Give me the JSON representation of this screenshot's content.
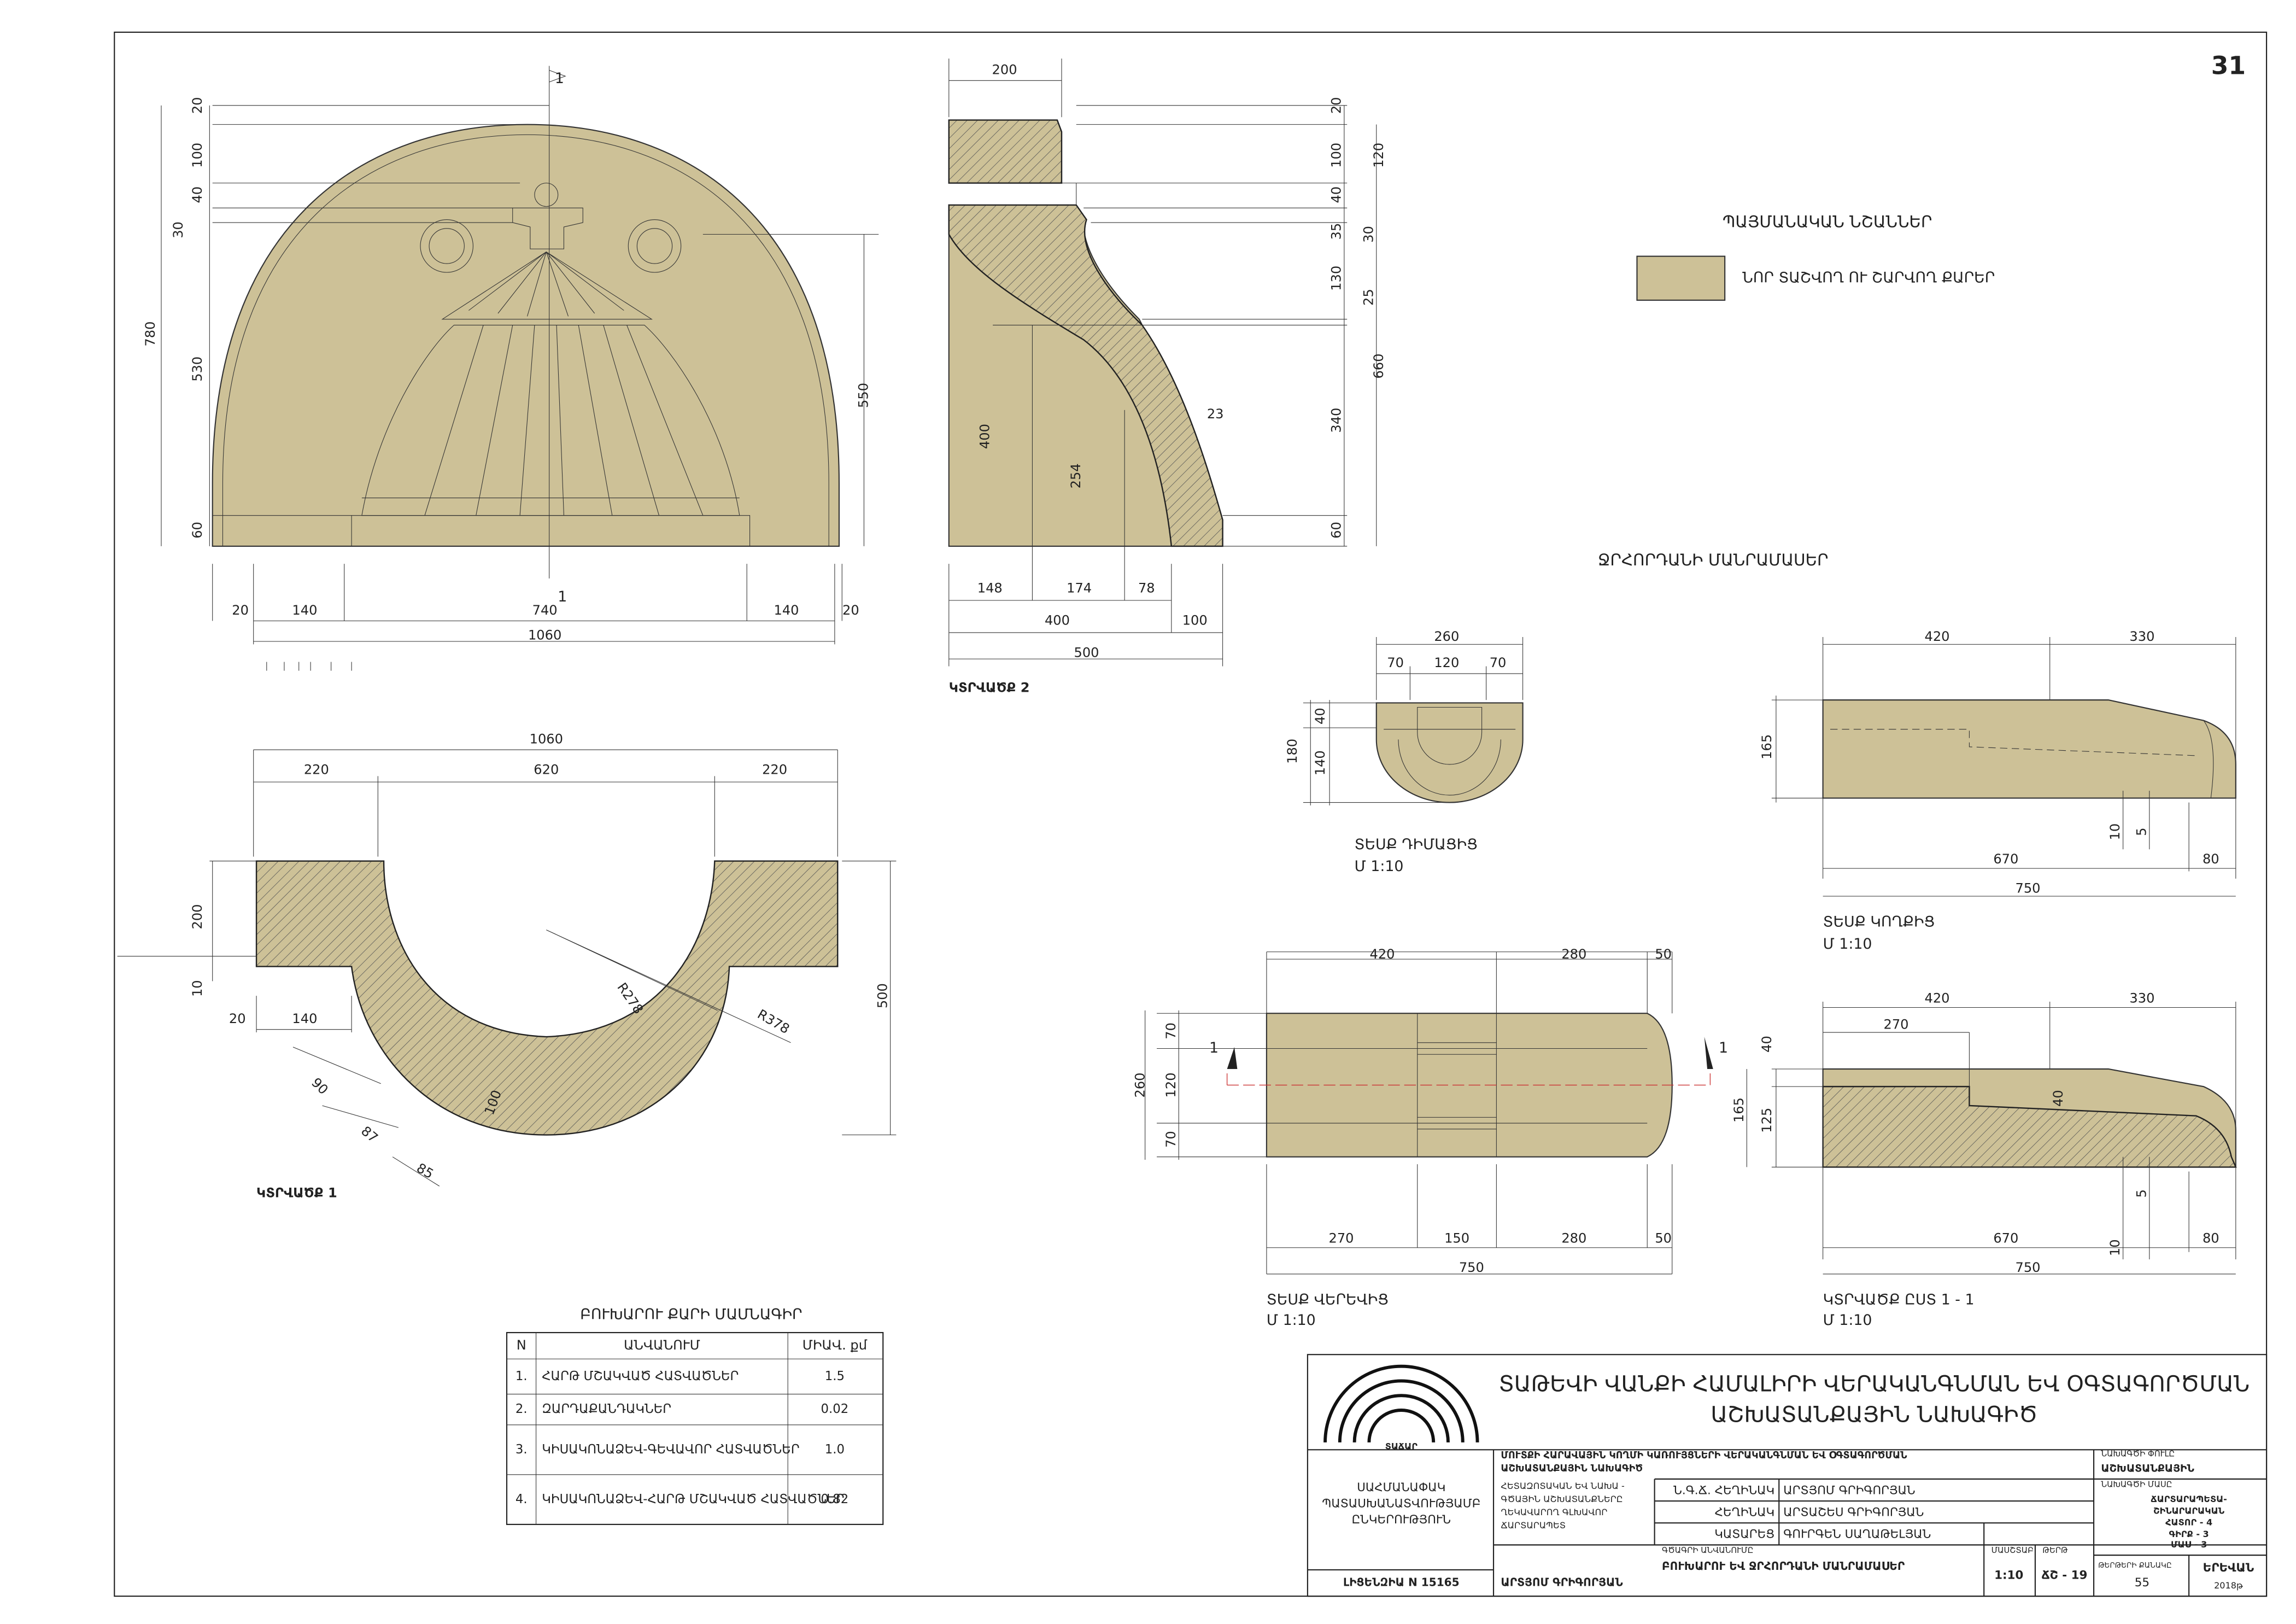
{
  "sheet_number": "31",
  "legend": {
    "title": "ՊԱՅՄԱՆԱԿԱՆ ՆՇԱՆՆԵՐ",
    "items": [
      "ՆՈՐ ՏԱՇՎՈՂ ՈՒ ՇԱՐՎՈՂ ՔԱՐԵՐ"
    ]
  },
  "elevation": {
    "section_marks": [
      "1",
      "1"
    ],
    "dims": [
      "20",
      "100",
      "40",
      "30",
      "530",
      "60",
      "780",
      "550",
      "20",
      "140",
      "740",
      "140",
      "20",
      "1060"
    ]
  },
  "section2": {
    "label": "ԿՏՐՎԱԾՔ 2",
    "dims": [
      "200",
      "20",
      "100",
      "40",
      "35",
      "130",
      "340",
      "60",
      "120",
      "30",
      "25",
      "660",
      "23",
      "400",
      "254",
      "148",
      "174",
      "78",
      "400",
      "100",
      "500"
    ]
  },
  "section1": {
    "label": "ԿՏՐՎԱԾՔ 1",
    "dims": [
      "1060",
      "220",
      "620",
      "220",
      "200",
      "10",
      "20",
      "140",
      "500",
      "R278",
      "R378",
      "90",
      "87",
      "85",
      "100"
    ]
  },
  "spout": {
    "title": "ՋՐՀՈՐԴԱՆԻ ՄԱՆՐԱՄԱՍԵՐ",
    "front": {
      "label": "ՏԵՍՔ ԴԻՄԱՑԻՑ",
      "scale": "Մ 1:10",
      "dims": [
        "260",
        "70",
        "120",
        "70",
        "40",
        "140",
        "180"
      ]
    },
    "side": {
      "label": "ՏԵՍՔ ԿՈՂՔԻՑ",
      "scale": "Մ 1:10",
      "dims": [
        "420",
        "330",
        "165",
        "10",
        "5",
        "670",
        "80",
        "750"
      ]
    },
    "top": {
      "label": "ՏԵՍՔ ՎԵՐԵՎԻՑ",
      "scale": "Մ 1:10",
      "section_marks": [
        "1",
        "1"
      ],
      "dims": [
        "420",
        "280",
        "50",
        "70",
        "120",
        "70",
        "260",
        "270",
        "150",
        "280",
        "50",
        "750"
      ]
    },
    "section": {
      "label": "ԿՏՐՎԱԾՔ ԸՍՏ 1 - 1",
      "scale": "Մ 1:10",
      "dims": [
        "420",
        "330",
        "270",
        "40",
        "125",
        "165",
        "40",
        "5",
        "10",
        "670",
        "80",
        "750"
      ]
    }
  },
  "table": {
    "title": "ԲՈՒԽԱՐՈՒ ՔԱՐԻ ՄԱՄՆԱԳԻՐ",
    "header": [
      "N",
      "ԱՆՎԱՆՈՒՄ",
      "ՄԻԱՎ. քմ"
    ],
    "rows": [
      [
        "1.",
        "ՀԱՐԹ ՄՇԱԿՎԱԾ ՀԱՏՎԱԾՆԵՐ",
        "1.5"
      ],
      [
        "2.",
        "ԶԱՐԴԱՔԱՆԴԱԿՆԵՐ",
        "0.02"
      ],
      [
        "3.",
        "ԿԻՍԱԿՈՆԱՁԵՎ-ԳԵՎԱՎՈՐ ՀԱՏՎԱԾՆԵՐ",
        "1.0"
      ],
      [
        "4.",
        "ԿԻՍԱԿՈՆԱՁԵՎ-ՀԱՐԹ ՄՇԱԿՎԱԾ ՀԱՏՎԱԾՆԵՐ",
        "0.82"
      ]
    ]
  },
  "title_block": {
    "title_lines": [
      "ՏԱԹԵՎԻ ՎԱՆՔԻ ՀԱՄԱԼԻՐԻ ՎԵՐԱԿԱՆԳՆՄԱՆ ԵՎ ՕԳՏԱԳՈՐԾՄԱՆ",
      "ԱՇԽԱՏԱՆՔԱՅԻՆ ՆԱԽԱԳԻԾ"
    ],
    "logo_text": "ՏԱՃԱՐ",
    "project_lines": [
      "ՄՈՒՏՔԻ ՀԱՐԱՎԱՅԻՆ ԿՈՂՄԻ ԿԱՌՈՒՅՑՆԵՐԻ ՎԵՐԱԿԱՆԳՆՄԱՆ ԵՎ ՕԳՏԱԳՈՐԾՄԱՆ",
      "ԱՇԽԱՏԱՆՔԱՅԻՆ ՆԱԽԱԳԻԾ"
    ],
    "company_lines": [
      "ՍԱՀՄԱՆԱՓԱԿ",
      "ՊԱՏԱՍԽԱՆԱՏՎՈՒԹՅԱՄԲ",
      "ԸՆԿԵՐՈՒԹՅՈՒՆ"
    ],
    "license": "ԼԻՑԵՆԶԻԱ N 15165",
    "director": "ԱՐՏՅՈՄ ԳՐԻԳՈՐՅԱՆ",
    "note_lines": [
      "ՀԵՏԱԶՈՏԱԿԱՆ ԵՎ ՆԱԽԱ -",
      "ԳԾԱՅԻՆ ԱՇԽԱՏԱՆՔՆԵՐԸ",
      "ՂԵԿԱՎԱՐՈՂ ԳԼԽԱՎՈՐ",
      "ՃԱՐՏԱՐԱՊԵՏ"
    ],
    "roles": [
      [
        "Ն.Գ.Ճ. ՀԵՂԻՆԱԿ",
        "ԱՐՏՅՈՄ ԳՐԻԳՈՐՅԱՆ"
      ],
      [
        "ՀԵՂԻՆԱԿ",
        "ԱՐՏԱՇԵՍ ԳՐԻԳՈՐՅԱՆ"
      ],
      [
        "ԿԱՏԱՐԵՑ",
        "ԳՈՒՐԳԵՆ ՍԱՂԱԹԵԼՅԱՆ"
      ]
    ],
    "phase_label": "ՆԱԽԱԳԾԻ ՓՈՒԼԸ",
    "phase": "ԱՇԽԱՏԱՆՔԱՅԻՆ",
    "part_label": "ՆԱԽԱԳԾԻ ՄԱՍԸ",
    "part_lines": [
      "ՃԱՐՏԱՐԱՊԵՏԱ-",
      "ՇԻՆԱՐԱՐԱԿԱՆ",
      "ՀԱՏՈՐ - 4",
      "ԳԻՐՔ - 3",
      "ՄԱՍ - 3"
    ],
    "drawing_name_label": "ԳԾԱԳՐԻ ԱՆՎԱՆՈՒՄԸ",
    "drawing_name": "ԲՈՒԽԱՐՈՒ ԵՎ ՋՐՀՈՐԴԱՆԻ ՄԱՆՐԱՄԱՍԵՐ",
    "scale_label": "ՄԱՍՇՏԱԲ",
    "scale": "1:10",
    "sheet_label": "ԹԵՐԹ",
    "sheet": "ՃՇ - 19",
    "sheets_count_label": "ԹԵՐԹԵՐԻ ՔԱՆԱԿԸ",
    "sheets_count": "55",
    "city": "ԵՐԵՎԱՆ",
    "year": "2018թ"
  }
}
